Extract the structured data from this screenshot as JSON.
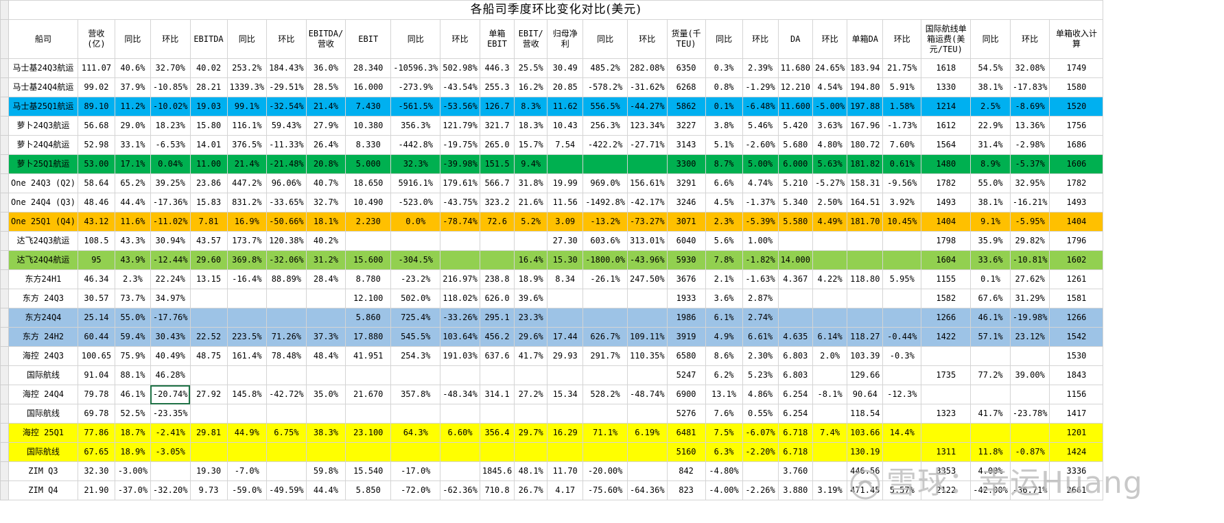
{
  "title": "各船司季度环比变化对比(美元)",
  "headers": [
    "船司",
    "营收(亿)",
    "同比",
    "环比",
    "EBITDA",
    "同比",
    "环比",
    "EBITDA/营收",
    "EBIT",
    "同比",
    "环比",
    "单箱EBIT",
    "EBIT/营收",
    "归母净利",
    "同比",
    "环比",
    "货量(千TEU)",
    "同比",
    "环比",
    "DA",
    "环比",
    "单箱DA",
    "环比",
    "国际航线单箱运费(美元/TEU)",
    "同比",
    "环比",
    "单箱收入计算"
  ],
  "rows": [
    {
      "hl": "",
      "c": [
        "马士基24Q3航运",
        "111.07",
        "40.6%",
        "32.70%",
        "40.02",
        "253.2%",
        "184.43%",
        "36.0%",
        "28.340",
        "-10596.3%",
        "502.98%",
        "446.3",
        "25.5%",
        "30.49",
        "485.2%",
        "282.08%",
        "6350",
        "0.3%",
        "2.39%",
        "11.680",
        "24.65%",
        "183.94",
        "21.75%",
        "1618",
        "54.5%",
        "32.08%",
        "1749"
      ]
    },
    {
      "hl": "",
      "c": [
        "马士基24Q4航运",
        "99.02",
        "37.9%",
        "-10.85%",
        "28.21",
        "1339.3%",
        "-29.51%",
        "28.5%",
        "16.000",
        "-273.9%",
        "-43.54%",
        "255.3",
        "16.2%",
        "20.85",
        "-578.2%",
        "-31.62%",
        "6268",
        "0.8%",
        "-1.29%",
        "12.210",
        "4.54%",
        "194.80",
        "5.91%",
        "1330",
        "38.1%",
        "-17.83%",
        "1580"
      ]
    },
    {
      "hl": "#00b0f0",
      "c": [
        "马士基25Q1航运",
        "89.10",
        "11.2%",
        "-10.02%",
        "19.03",
        "99.1%",
        "-32.54%",
        "21.4%",
        "7.430",
        "-561.5%",
        "-53.56%",
        "126.7",
        "8.3%",
        "11.62",
        "556.5%",
        "-44.27%",
        "5862",
        "0.1%",
        "-6.48%",
        "11.600",
        "-5.00%",
        "197.88",
        "1.58%",
        "1214",
        "2.5%",
        "-8.69%",
        "1520"
      ]
    },
    {
      "hl": "",
      "c": [
        "萝卜24Q3航运",
        "56.68",
        "29.0%",
        "18.23%",
        "15.80",
        "116.1%",
        "59.43%",
        "27.9%",
        "10.380",
        "356.3%",
        "121.79%",
        "321.7",
        "18.3%",
        "10.43",
        "256.3%",
        "123.34%",
        "3227",
        "3.8%",
        "5.46%",
        "5.420",
        "3.63%",
        "167.96",
        "-1.73%",
        "1612",
        "22.9%",
        "13.36%",
        "1756"
      ]
    },
    {
      "hl": "",
      "c": [
        "萝卜24Q4航运",
        "52.98",
        "33.1%",
        "-6.53%",
        "14.01",
        "376.5%",
        "-11.33%",
        "26.4%",
        "8.330",
        "-442.8%",
        "-19.75%",
        "265.0",
        "15.7%",
        "7.54",
        "-422.2%",
        "-27.71%",
        "3143",
        "5.1%",
        "-2.60%",
        "5.680",
        "4.80%",
        "180.72",
        "7.60%",
        "1564",
        "31.4%",
        "-2.98%",
        "1686"
      ]
    },
    {
      "hl": "#00b050",
      "c": [
        "萝卜25Q1航运",
        "53.00",
        "17.1%",
        "0.04%",
        "11.00",
        "21.4%",
        "-21.48%",
        "20.8%",
        "5.000",
        "32.3%",
        "-39.98%",
        "151.5",
        "9.4%",
        "",
        "",
        "",
        "3300",
        "8.7%",
        "5.00%",
        "6.000",
        "5.63%",
        "181.82",
        "0.61%",
        "1480",
        "8.9%",
        "-5.37%",
        "1606"
      ]
    },
    {
      "hl": "",
      "c": [
        "One 24Q3 (Q2)",
        "58.64",
        "65.2%",
        "39.25%",
        "23.86",
        "447.2%",
        "96.06%",
        "40.7%",
        "18.650",
        "5916.1%",
        "179.61%",
        "566.7",
        "31.8%",
        "19.99",
        "969.0%",
        "156.61%",
        "3291",
        "6.6%",
        "4.74%",
        "5.210",
        "-5.27%",
        "158.31",
        "-9.56%",
        "1782",
        "55.0%",
        "32.95%",
        "1782"
      ]
    },
    {
      "hl": "",
      "c": [
        "One 24Q4 (Q3)",
        "48.46",
        "44.4%",
        "-17.36%",
        "15.83",
        "831.2%",
        "-33.65%",
        "32.7%",
        "10.490",
        "-523.0%",
        "-43.75%",
        "323.2",
        "21.6%",
        "11.56",
        "-1492.8%",
        "-42.17%",
        "3246",
        "4.5%",
        "-1.37%",
        "5.340",
        "2.50%",
        "164.51",
        "3.92%",
        "1493",
        "38.1%",
        "-16.21%",
        "1493"
      ]
    },
    {
      "hl": "#ffc000",
      "c": [
        "One 25Q1 (Q4)",
        "43.12",
        "11.6%",
        "-11.02%",
        "7.81",
        "16.9%",
        "-50.66%",
        "18.1%",
        "2.230",
        "0.0%",
        "-78.74%",
        "72.6",
        "5.2%",
        "3.09",
        "-13.2%",
        "-73.27%",
        "3071",
        "2.3%",
        "-5.39%",
        "5.580",
        "4.49%",
        "181.70",
        "10.45%",
        "1404",
        "9.1%",
        "-5.95%",
        "1404"
      ]
    },
    {
      "hl": "",
      "c": [
        "达飞24Q3航运",
        "108.5",
        "43.3%",
        "30.94%",
        "43.57",
        "173.7%",
        "120.38%",
        "40.2%",
        "",
        "",
        "",
        "",
        "",
        "27.30",
        "603.6%",
        "313.01%",
        "6040",
        "5.6%",
        "1.00%",
        "",
        "",
        "",
        "",
        "1798",
        "35.9%",
        "29.82%",
        "1796"
      ]
    },
    {
      "hl": "#92d050",
      "c": [
        "达飞24Q4航运",
        "95",
        "43.9%",
        "-12.44%",
        "29.60",
        "369.8%",
        "-32.06%",
        "31.2%",
        "15.600",
        "-304.5%",
        "",
        "",
        "16.4%",
        "15.30",
        "-1800.0%",
        "-43.96%",
        "5930",
        "7.8%",
        "-1.82%",
        "14.000",
        "",
        "",
        "",
        "1604",
        "33.6%",
        "-10.81%",
        "1602"
      ]
    },
    {
      "hl": "",
      "c": [
        "东方24H1",
        "46.34",
        "2.3%",
        "22.24%",
        "13.15",
        "-16.4%",
        "88.89%",
        "28.4%",
        "8.780",
        "-23.2%",
        "216.97%",
        "238.8",
        "18.9%",
        "8.34",
        "-26.1%",
        "247.50%",
        "3676",
        "2.1%",
        "-1.63%",
        "4.367",
        "4.22%",
        "118.80",
        "5.95%",
        "1155",
        "0.1%",
        "27.62%",
        "1261"
      ]
    },
    {
      "hl": "",
      "c": [
        "东方 24Q3",
        "30.57",
        "73.7%",
        "34.97%",
        "",
        "",
        "",
        "",
        "12.100",
        "502.0%",
        "118.02%",
        "626.0",
        "39.6%",
        "",
        "",
        "",
        "1933",
        "3.6%",
        "2.87%",
        "",
        "",
        "",
        "",
        "1582",
        "67.6%",
        "31.29%",
        "1581"
      ]
    },
    {
      "hl": "#9dc3e6",
      "c": [
        "东方24Q4",
        "25.14",
        "55.0%",
        "-17.76%",
        "",
        "",
        "",
        "",
        "5.860",
        "725.4%",
        "-33.26%",
        "295.1",
        "23.3%",
        "",
        "",
        "",
        "1986",
        "6.1%",
        "2.74%",
        "",
        "",
        "",
        "",
        "1266",
        "46.1%",
        "-19.98%",
        "1266"
      ]
    },
    {
      "hl": "#9dc3e6",
      "c": [
        "东方 24H2",
        "60.44",
        "59.4%",
        "30.43%",
        "22.52",
        "223.5%",
        "71.26%",
        "37.3%",
        "17.880",
        "545.5%",
        "103.64%",
        "456.2",
        "29.6%",
        "17.44",
        "626.7%",
        "109.11%",
        "3919",
        "4.9%",
        "6.61%",
        "4.635",
        "6.14%",
        "118.27",
        "-0.44%",
        "1422",
        "57.1%",
        "23.12%",
        "1542"
      ]
    },
    {
      "hl": "",
      "c": [
        "海控 24Q3",
        "100.65",
        "75.9%",
        "40.49%",
        "48.75",
        "161.4%",
        "78.48%",
        "48.4%",
        "41.951",
        "254.3%",
        "191.03%",
        "637.6",
        "41.7%",
        "29.93",
        "291.7%",
        "110.35%",
        "6580",
        "8.6%",
        "2.30%",
        "6.803",
        "2.0%",
        "103.39",
        "-0.3%",
        "",
        "",
        "",
        "1530"
      ]
    },
    {
      "hl": "",
      "c": [
        "国际航线",
        "91.04",
        "88.1%",
        "46.28%",
        "",
        "",
        "",
        "",
        "",
        "",
        "",
        "",
        "",
        "",
        "",
        "",
        "5247",
        "6.2%",
        "5.23%",
        "6.803",
        "",
        "129.66",
        "",
        "1735",
        "77.2%",
        "39.00%",
        "1843"
      ]
    },
    {
      "hl": "",
      "c": [
        "海控 24Q4",
        "79.78",
        "46.1%",
        "-20.74%",
        "27.92",
        "145.8%",
        "-42.72%",
        "35.0%",
        "21.670",
        "357.8%",
        "-48.34%",
        "314.1",
        "27.2%",
        "15.34",
        "528.2%",
        "-48.74%",
        "6900",
        "13.1%",
        "4.86%",
        "6.254",
        "-8.1%",
        "90.64",
        "-12.3%",
        "",
        "",
        "",
        "1156"
      ]
    },
    {
      "hl": "",
      "c": [
        "国际航线",
        "69.78",
        "52.5%",
        "-23.35%",
        "",
        "",
        "",
        "",
        "",
        "",
        "",
        "",
        "",
        "",
        "",
        "",
        "5276",
        "7.6%",
        "0.55%",
        "6.254",
        "",
        "118.54",
        "",
        "1323",
        "41.7%",
        "-23.78%",
        "1417"
      ]
    },
    {
      "hl": "#ffff00",
      "c": [
        "海控 25Q1",
        "77.86",
        "18.7%",
        "-2.41%",
        "29.81",
        "44.9%",
        "6.75%",
        "38.3%",
        "23.100",
        "64.3%",
        "6.60%",
        "356.4",
        "29.7%",
        "16.29",
        "71.1%",
        "6.19%",
        "6481",
        "7.5%",
        "-6.07%",
        "6.718",
        "7.4%",
        "103.66",
        "14.4%",
        "",
        "",
        "",
        "1201"
      ]
    },
    {
      "hl": "#ffff00",
      "c": [
        "国际航线",
        "67.65",
        "18.9%",
        "-3.05%",
        "",
        "",
        "",
        "",
        "",
        "",
        "",
        "",
        "",
        "",
        "",
        "",
        "5160",
        "6.3%",
        "-2.20%",
        "6.718",
        "",
        "130.19",
        "",
        "1311",
        "11.8%",
        "-0.87%",
        "1424"
      ]
    },
    {
      "hl": "",
      "c": [
        "ZIM Q3",
        "32.30",
        "-3.00%",
        "",
        "19.30",
        "-7.0%",
        "",
        "59.8%",
        "15.540",
        "-17.0%",
        "",
        "1845.6",
        "48.1%",
        "11.70",
        "-20.00%",
        "",
        "842",
        "-4.80%",
        "",
        "3.760",
        "",
        "446.56",
        "",
        "3353",
        "4.00%",
        "",
        "3336"
      ]
    },
    {
      "hl": "",
      "c": [
        "ZIM Q4",
        "21.90",
        "-37.0%",
        "-32.20%",
        "9.73",
        "-59.0%",
        "-49.59%",
        "44.4%",
        "5.850",
        "-72.0%",
        "-62.36%",
        "710.8",
        "26.7%",
        "4.17",
        "-75.60%",
        "-64.36%",
        "823",
        "-4.00%",
        "-2.26%",
        "3.880",
        "3.19%",
        "471.45",
        "5.57%",
        "2122",
        "-42.00%",
        "-36.71%",
        "2661"
      ]
    }
  ],
  "watermark": "雪球：幸运Huang",
  "colors": {
    "selection": "#1e7145",
    "gridline": "#d4d4d4"
  }
}
